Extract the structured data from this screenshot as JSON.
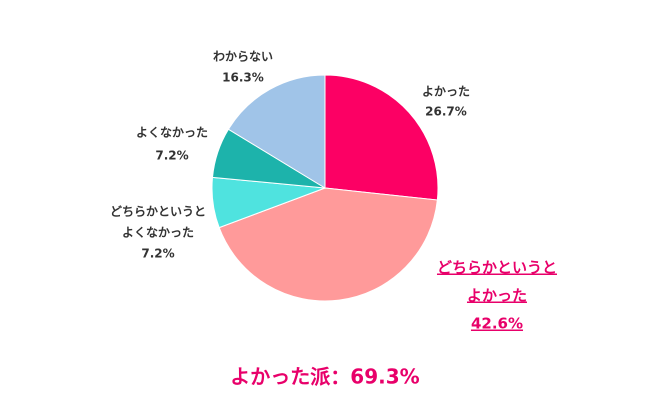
{
  "chart_data": {
    "type": "pie",
    "categories": [
      [
        "よかった"
      ],
      [
        "どちらかというと",
        "よかった"
      ],
      [
        "どちらかというと",
        "よくなかった"
      ],
      [
        "よくなかった"
      ],
      [
        "わからない"
      ]
    ],
    "values": [
      26.7,
      42.6,
      7.2,
      7.2,
      16.3
    ],
    "value_labels": [
      "26.7%",
      "42.6%",
      "7.2%",
      "7.2%",
      "16.3%"
    ],
    "colors": [
      "#fc0064",
      "#ff9a9a",
      "#4fe3df",
      "#1db3ab",
      "#a0c4e8"
    ],
    "annotation": "よかった派：69.3%"
  }
}
